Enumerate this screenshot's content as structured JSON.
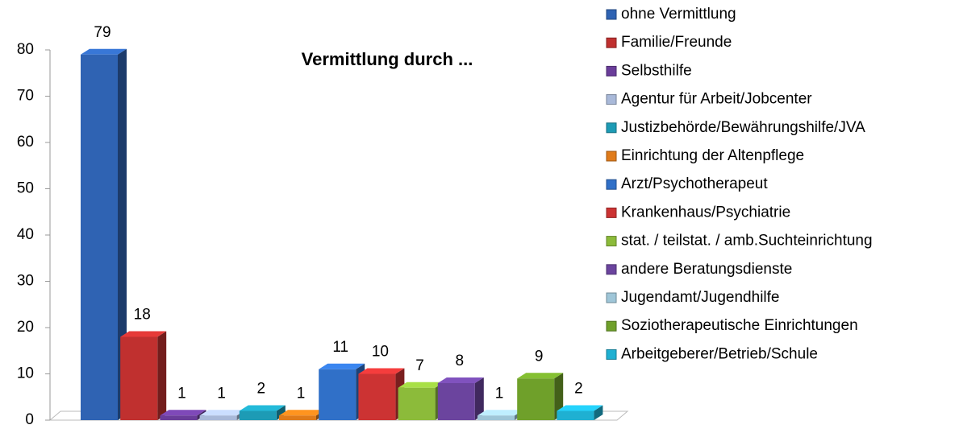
{
  "chart_data": {
    "type": "bar",
    "title": "Vermittlung durch ...",
    "ylim": [
      0,
      80
    ],
    "yticks": [
      0,
      10,
      20,
      30,
      40,
      50,
      60,
      70,
      80
    ],
    "legend": "right",
    "series": [
      {
        "name": "ohne Vermittlung",
        "color": "#2f63b3",
        "values": [
          79
        ]
      },
      {
        "name": "Familie/Freunde",
        "color": "#c0302f",
        "values": [
          18
        ]
      },
      {
        "name": "Selbsthilfe",
        "color": "#6a3d9a",
        "values": [
          1
        ]
      },
      {
        "name": "Agentur für Arbeit/Jobcenter",
        "color": "#a9b9d9",
        "values": [
          1
        ]
      },
      {
        "name": "Justizbehörde/Bewährungshilfe/JVA",
        "color": "#1d9bb5",
        "values": [
          2
        ]
      },
      {
        "name": "Einrichtung der Altenpflege",
        "color": "#e07b1a",
        "values": [
          1
        ]
      },
      {
        "name": "Arzt/Psychotherapeut",
        "color": "#3070c8",
        "values": [
          11
        ]
      },
      {
        "name": "Krankenhaus/Psychiatrie",
        "color": "#cc3333",
        "values": [
          10
        ]
      },
      {
        "name": "stat. / teilstat. / amb.Suchteinrichtung",
        "color": "#8cbb3a",
        "values": [
          7
        ]
      },
      {
        "name": "andere Beratungsdienste",
        "color": "#6b449e",
        "values": [
          8
        ]
      },
      {
        "name": "Jugendamt/Jugendhilfe",
        "color": "#9fc6d8",
        "values": [
          1
        ]
      },
      {
        "name": "Soziotherapeutische Einrichtungen",
        "color": "#6fa02a",
        "values": [
          9
        ]
      },
      {
        "name": "Arbeitgeberer/Betrieb/Schule",
        "color": "#1fb0d2",
        "values": [
          2
        ]
      }
    ]
  }
}
